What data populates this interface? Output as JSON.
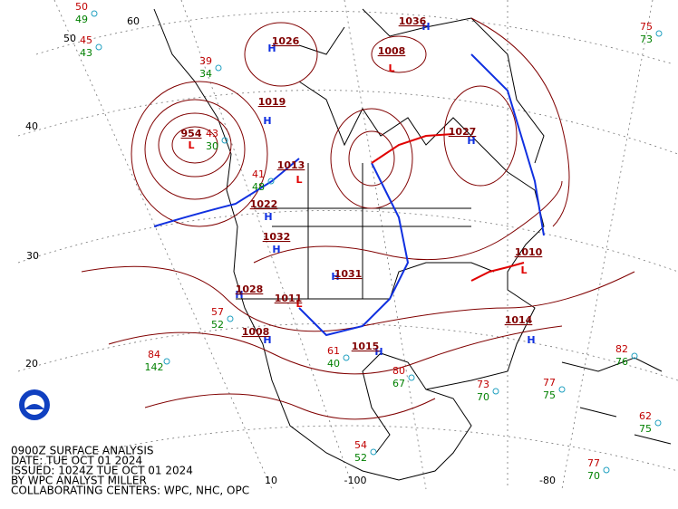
{
  "caption": [
    "0900Z SURFACE ANALYSIS",
    "DATE: TUE OCT 01 2024",
    "ISSUED: 1024Z TUE OCT 01 2024",
    "BY WPC ANALYST MILLER",
    "COLLABORATING CENTERS: WPC, NHC, OPC"
  ],
  "grid_labels": [
    "60",
    "50",
    "40",
    "30",
    "20",
    "10",
    "-100",
    "-80"
  ],
  "centers": [
    {
      "letter": "H",
      "pressure": "1026"
    },
    {
      "letter": "H",
      "pressure": "1019"
    },
    {
      "letter": "L",
      "pressure": "1013"
    },
    {
      "letter": "H",
      "pressure": "1032"
    },
    {
      "letter": "H",
      "pressure": "1031"
    },
    {
      "letter": "H",
      "pressure": "1028"
    },
    {
      "letter": "L",
      "pressure": "1011"
    },
    {
      "letter": "H",
      "pressure": "1015"
    },
    {
      "letter": "L",
      "pressure": "1010"
    },
    {
      "letter": "H",
      "pressure": "1014"
    },
    {
      "letter": "H",
      "pressure": "1036"
    },
    {
      "letter": "L",
      "pressure": "1008"
    },
    {
      "letter": "L",
      "pressure": "954"
    },
    {
      "letter": "H",
      "pressure": "1027"
    },
    {
      "letter": "H",
      "pressure": "1022"
    },
    {
      "letter": "H",
      "pressure": "1008"
    }
  ],
  "stations": [
    {
      "temp": "50",
      "dew": "49"
    },
    {
      "temp": "45",
      "dew": "43"
    },
    {
      "temp": "39",
      "dew": "34"
    },
    {
      "temp": "41",
      "dew": "48"
    },
    {
      "temp": "57",
      "dew": "52"
    },
    {
      "temp": "84",
      "dew": "142"
    },
    {
      "temp": "77",
      "dew": "70"
    },
    {
      "temp": "75",
      "dew": "73"
    },
    {
      "temp": "82",
      "dew": "76"
    },
    {
      "temp": "62",
      "dew": "75"
    },
    {
      "temp": "77",
      "dew": "75"
    },
    {
      "temp": "80",
      "dew": "67"
    },
    {
      "temp": "54",
      "dew": "52"
    },
    {
      "temp": "73",
      "dew": "70"
    },
    {
      "temp": "61",
      "dew": "40"
    },
    {
      "temp": "43",
      "dew": "30"
    }
  ]
}
